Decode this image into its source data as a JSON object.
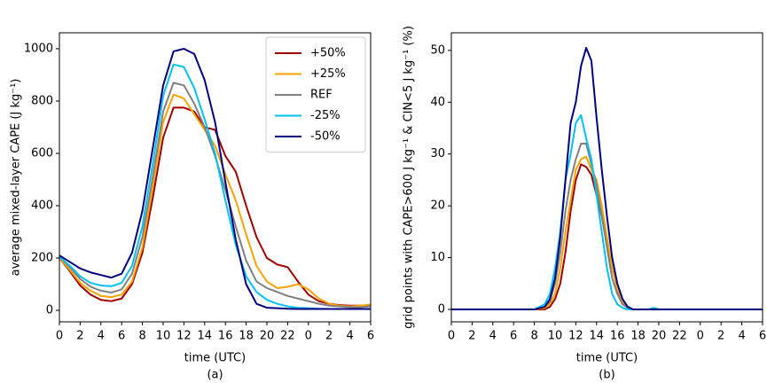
{
  "chart_data": [
    {
      "type": "line",
      "ylabel": "average mixed-layer CAPE (J kg⁻¹)",
      "xlabel": "time (UTC)",
      "caption": "(a)",
      "x": [
        0,
        1,
        2,
        3,
        4,
        5,
        6,
        7,
        8,
        9,
        10,
        11,
        12,
        13,
        14,
        15,
        16,
        17,
        18,
        19,
        20,
        21,
        22,
        23,
        24,
        25,
        26,
        27,
        28,
        29,
        30
      ],
      "xlim": [
        0,
        30
      ],
      "xticks": [
        0,
        2,
        4,
        6,
        8,
        10,
        12,
        14,
        16,
        18,
        20,
        22,
        {
          "value": 24,
          "label": "0"
        },
        {
          "value": 26,
          "label": "2"
        },
        {
          "value": 28,
          "label": "4"
        },
        {
          "value": 30,
          "label": "6"
        }
      ],
      "ylim": [
        -44,
        1061
      ],
      "yticks": [
        0,
        200,
        400,
        600,
        800,
        1000
      ],
      "grid": false,
      "legend": "upper right",
      "series": [
        {
          "name": "+50%",
          "color": "#a00000",
          "values": [
            200,
            150,
            95,
            60,
            40,
            35,
            45,
            100,
            220,
            430,
            660,
            775,
            775,
            760,
            700,
            690,
            590,
            530,
            400,
            280,
            200,
            175,
            165,
            110,
            60,
            35,
            25,
            20,
            18,
            18,
            18
          ]
        },
        {
          "name": "+25%",
          "color": "#f5a300",
          "values": [
            200,
            155,
            105,
            75,
            55,
            50,
            60,
            110,
            240,
            470,
            720,
            825,
            810,
            750,
            690,
            630,
            520,
            420,
            290,
            170,
            110,
            85,
            90,
            100,
            80,
            45,
            25,
            18,
            15,
            18,
            22
          ]
        },
        {
          "name": "REF",
          "color": "#808080",
          "values": [
            205,
            165,
            120,
            90,
            75,
            68,
            80,
            140,
            280,
            510,
            760,
            870,
            860,
            790,
            700,
            590,
            460,
            320,
            190,
            110,
            85,
            70,
            55,
            45,
            35,
            25,
            18,
            15,
            12,
            12,
            15
          ]
        },
        {
          "name": "-25%",
          "color": "#00c2f0",
          "values": [
            205,
            170,
            130,
            105,
            95,
            92,
            105,
            170,
            320,
            560,
            820,
            940,
            930,
            850,
            730,
            600,
            420,
            250,
            130,
            70,
            40,
            25,
            15,
            10,
            8,
            6,
            5,
            5,
            5,
            5,
            5
          ]
        },
        {
          "name": "-50%",
          "color": "#000080",
          "values": [
            210,
            185,
            160,
            145,
            135,
            125,
            140,
            220,
            380,
            620,
            860,
            990,
            1000,
            980,
            880,
            720,
            490,
            270,
            100,
            25,
            10,
            8,
            6,
            5,
            5,
            5,
            5,
            5,
            5,
            5,
            5
          ]
        }
      ]
    },
    {
      "type": "line",
      "ylabel": "grid points with CAPE>600 J kg⁻¹ & CIN<5 J kg⁻¹ (%)",
      "xlabel": "time (UTC)",
      "caption": "(b)",
      "x": [
        0,
        8,
        9,
        9.5,
        10,
        10.5,
        11,
        11.5,
        12,
        12.5,
        13,
        13.5,
        14,
        14.5,
        15,
        15.5,
        16,
        16.5,
        17,
        17.5,
        18,
        19,
        19.5,
        20,
        30
      ],
      "xlim": [
        0,
        30
      ],
      "xticks": [
        0,
        2,
        4,
        6,
        8,
        10,
        12,
        14,
        16,
        18,
        20,
        22,
        {
          "value": 24,
          "label": "0"
        },
        {
          "value": 26,
          "label": "2"
        },
        {
          "value": 28,
          "label": "4"
        },
        {
          "value": 30,
          "label": "6"
        }
      ],
      "ylim": [
        -2.4,
        53.4
      ],
      "yticks": [
        0,
        10,
        20,
        30,
        40,
        50
      ],
      "grid": false,
      "legend": false,
      "series": [
        {
          "color": "#a00000",
          "values": [
            0,
            0,
            0,
            0.5,
            2,
            5,
            11,
            19,
            25,
            28,
            27.5,
            26,
            22,
            18,
            13,
            8,
            4,
            1,
            0.5,
            0,
            0,
            0,
            0,
            0,
            0
          ]
        },
        {
          "color": "#f5a300",
          "values": [
            0,
            0,
            0.3,
            1,
            3,
            8,
            15,
            21,
            27,
            29,
            29.5,
            27,
            25,
            20,
            14,
            8,
            4,
            1.5,
            0.5,
            0,
            0,
            0,
            0,
            0,
            0
          ]
        },
        {
          "color": "#808080",
          "values": [
            0,
            0,
            0.5,
            1.5,
            5,
            11,
            19,
            25,
            29,
            32,
            32,
            28,
            24,
            18,
            12,
            6,
            3,
            1,
            0.3,
            0,
            0,
            0,
            0,
            0,
            0
          ]
        },
        {
          "color": "#00c2f0",
          "values": [
            0,
            0,
            1,
            3,
            8,
            15,
            25,
            30,
            36,
            37.5,
            33,
            29,
            22,
            15,
            8,
            3,
            1,
            0.3,
            0,
            0,
            0,
            0,
            0.3,
            0,
            0
          ]
        },
        {
          "color": "#000080",
          "values": [
            0,
            0,
            0.5,
            2,
            6,
            14,
            25,
            36,
            40,
            47,
            50.5,
            48,
            37,
            27,
            18,
            10,
            5,
            2,
            0.5,
            0,
            0,
            0,
            0,
            0,
            0
          ]
        }
      ]
    }
  ]
}
